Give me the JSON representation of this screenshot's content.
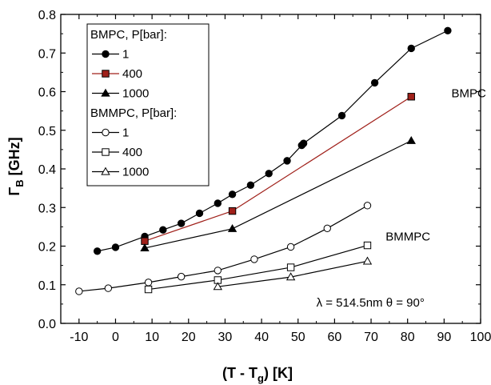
{
  "chart_data": {
    "type": "scatter",
    "xlabel": "(T - Tg) [K]",
    "xlabel_parts": {
      "main": "(T - T",
      "sub": "g",
      "tail": ") [K]"
    },
    "ylabel": "ΓB [GHz]",
    "ylabel_parts": {
      "main": "Γ",
      "sub": "B",
      "tail": " [GHz]"
    },
    "xlim": [
      -15,
      100
    ],
    "ylim": [
      0.0,
      0.8
    ],
    "x_ticks": [
      -10,
      0,
      10,
      20,
      30,
      40,
      50,
      60,
      70,
      80,
      90,
      100
    ],
    "y_ticks": [
      0.0,
      0.1,
      0.2,
      0.3,
      0.4,
      0.5,
      0.6,
      0.7,
      0.8
    ],
    "grid": false,
    "legend": {
      "placement": "top-left",
      "entries": [
        {
          "type": "header",
          "text": "BMPC, P[bar]:"
        },
        {
          "type": "series",
          "series": 0,
          "text": "1"
        },
        {
          "type": "series",
          "series": 1,
          "text": "400"
        },
        {
          "type": "series",
          "series": 2,
          "text": "1000"
        },
        {
          "type": "header",
          "text": "BMMPC, P[bar]:"
        },
        {
          "type": "series",
          "series": 3,
          "text": "1"
        },
        {
          "type": "series",
          "series": 4,
          "text": "400"
        },
        {
          "type": "series",
          "series": 5,
          "text": "1000"
        }
      ]
    },
    "annotations": [
      {
        "text": "BMPC",
        "x": 92,
        "y": 0.585
      },
      {
        "text": "BMMPC",
        "x": 74,
        "y": 0.215
      },
      {
        "text": "λ = 514.5nm θ = 90°",
        "x": 55,
        "y": 0.044
      }
    ],
    "series": [
      {
        "name": "BMPC, P[bar]: 1",
        "marker": "circle-filled",
        "color": "#000000",
        "x": [
          -5,
          0,
          8,
          13,
          18,
          23,
          28,
          32,
          37,
          42,
          47,
          51,
          51.5,
          62,
          71,
          81,
          91
        ],
        "y": [
          0.187,
          0.197,
          0.225,
          0.242,
          0.259,
          0.285,
          0.311,
          0.334,
          0.358,
          0.388,
          0.421,
          0.461,
          0.466,
          0.538,
          0.623,
          0.712,
          0.758
        ]
      },
      {
        "name": "BMPC, P[bar]: 400",
        "marker": "square-filled",
        "color": "#a0201a",
        "x": [
          8,
          32,
          81
        ],
        "y": [
          0.213,
          0.291,
          0.587
        ]
      },
      {
        "name": "BMPC, P[bar]: 1000",
        "marker": "triangle-filled",
        "color": "#000000",
        "x": [
          8,
          32,
          81
        ],
        "y": [
          0.195,
          0.245,
          0.473
        ]
      },
      {
        "name": "BMMPC, P[bar]: 1",
        "marker": "circle-open",
        "color": "#000000",
        "x": [
          -10,
          -2,
          9,
          18,
          28,
          38,
          48,
          58,
          69
        ],
        "y": [
          0.083,
          0.091,
          0.106,
          0.121,
          0.137,
          0.166,
          0.198,
          0.246,
          0.305
        ]
      },
      {
        "name": "BMMPC, P[bar]: 400",
        "marker": "square-open",
        "color": "#000000",
        "x": [
          9,
          28,
          48,
          69
        ],
        "y": [
          0.088,
          0.112,
          0.145,
          0.202
        ]
      },
      {
        "name": "BMMPC, P[bar]: 1000",
        "marker": "triangle-open",
        "color": "#000000",
        "x": [
          28,
          48,
          69
        ],
        "y": [
          0.095,
          0.12,
          0.161
        ]
      }
    ]
  }
}
